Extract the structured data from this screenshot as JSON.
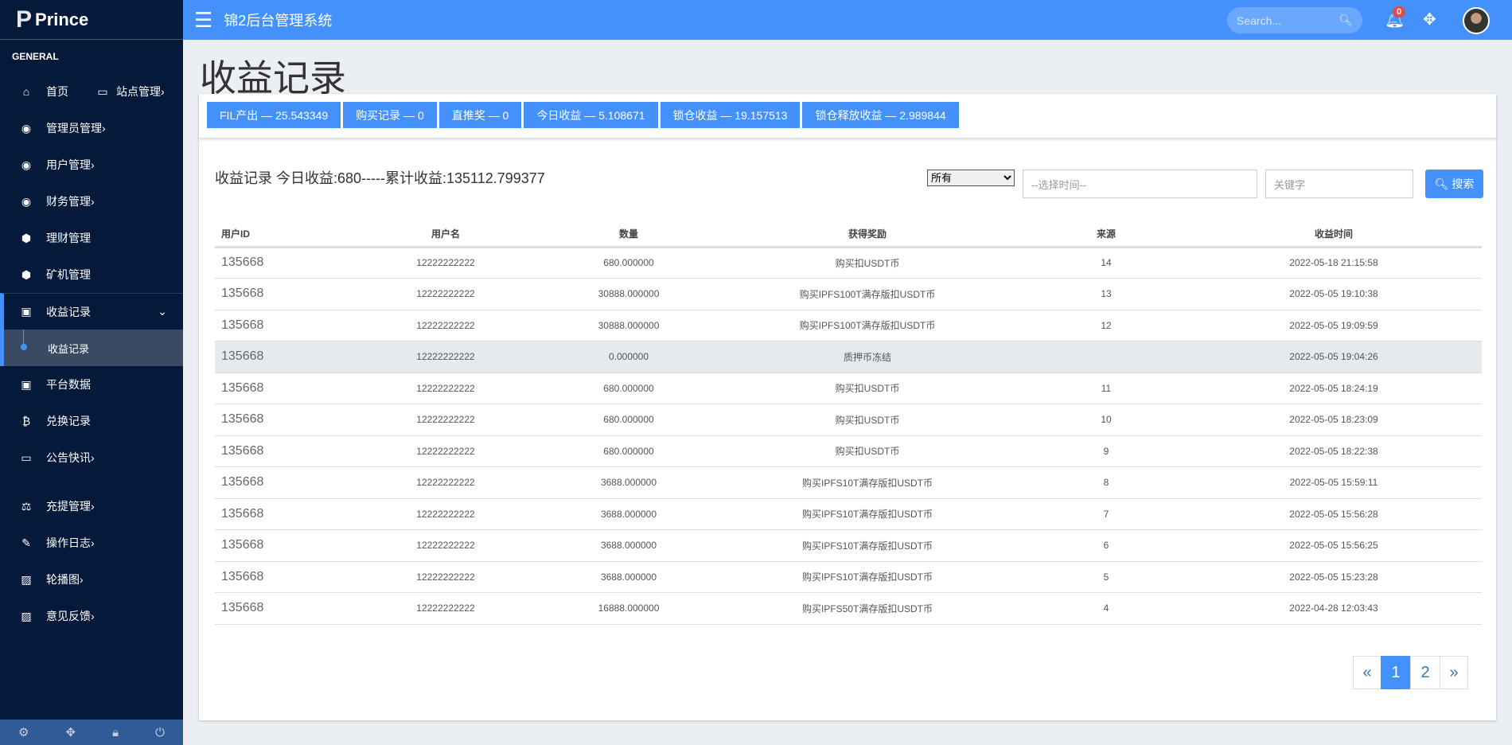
{
  "brand": "Prince",
  "sidebar": {
    "section": "GENERAL",
    "top_pair": [
      {
        "label": "首页",
        "icon": "home-icon"
      },
      {
        "label": "站点管理",
        "icon": "desktop-icon"
      }
    ],
    "items_a": [
      {
        "label": "管理员管理",
        "icon": "user-circle-icon"
      },
      {
        "label": "用户管理",
        "icon": "user-circle-icon"
      },
      {
        "label": "财务管理",
        "icon": "user-circle-icon"
      },
      {
        "label": "理财管理",
        "icon": "cube-icon"
      },
      {
        "label": "矿机管理",
        "icon": "cube-icon"
      }
    ],
    "active": {
      "label": "收益记录",
      "icon": "money-icon"
    },
    "sub": {
      "label": "收益记录"
    },
    "items_b": [
      {
        "label": "平台数据",
        "icon": "money-icon"
      },
      {
        "label": "兑换记录",
        "icon": "bitcoin-icon"
      },
      {
        "label": "公告快讯",
        "icon": "window-icon"
      },
      {
        "label": "充提管理",
        "icon": "balance-scale-icon"
      },
      {
        "label": "操作日志",
        "icon": "edit-icon"
      },
      {
        "label": "轮播图",
        "icon": "image-icon"
      },
      {
        "label": "意见反馈",
        "icon": "image-icon"
      }
    ]
  },
  "header": {
    "title": "锦2后台管理系统",
    "search_placeholder": "Search...",
    "notifications": "0"
  },
  "page_title": "收益记录",
  "stats": [
    "FIL产出 — 25.543349",
    "购买记录 — 0",
    "直推奖 — 0",
    "今日收益 — 5.108671",
    "锁仓收益 — 19.157513",
    "锁仓释放收益 — 2.989844"
  ],
  "summary": "收益记录 今日收益:680-----累计收益:135112.799377",
  "filter": {
    "select": "所有",
    "date_placeholder": "--选择时间--",
    "keyword_placeholder": "关键字",
    "search_label": "搜索"
  },
  "table": {
    "headers": [
      "用户ID",
      "用户名",
      "数量",
      "获得奖励",
      "来源",
      "收益时间"
    ],
    "rows": [
      [
        "135668",
        "12222222222",
        "680.000000",
        "购买扣USDT币",
        "14",
        "2022-05-18 21:15:58"
      ],
      [
        "135668",
        "12222222222",
        "30888.000000",
        "购买IPFS100T满存版扣USDT币",
        "13",
        "2022-05-05 19:10:38"
      ],
      [
        "135668",
        "12222222222",
        "30888.000000",
        "购买IPFS100T满存版扣USDT币",
        "12",
        "2022-05-05 19:09:59"
      ],
      [
        "135668",
        "12222222222",
        "0.000000",
        "质押币冻结",
        "",
        "2022-05-05 19:04:26"
      ],
      [
        "135668",
        "12222222222",
        "680.000000",
        "购买扣USDT币",
        "11",
        "2022-05-05 18:24:19"
      ],
      [
        "135668",
        "12222222222",
        "680.000000",
        "购买扣USDT币",
        "10",
        "2022-05-05 18:23:09"
      ],
      [
        "135668",
        "12222222222",
        "680.000000",
        "购买扣USDT币",
        "9",
        "2022-05-05 18:22:38"
      ],
      [
        "135668",
        "12222222222",
        "3688.000000",
        "购买IPFS10T满存版扣USDT币",
        "8",
        "2022-05-05 15:59:11"
      ],
      [
        "135668",
        "12222222222",
        "3688.000000",
        "购买IPFS10T满存版扣USDT币",
        "7",
        "2022-05-05 15:56:28"
      ],
      [
        "135668",
        "12222222222",
        "3688.000000",
        "购买IPFS10T满存版扣USDT币",
        "6",
        "2022-05-05 15:56:25"
      ],
      [
        "135668",
        "12222222222",
        "3688.000000",
        "购买IPFS10T满存版扣USDT币",
        "5",
        "2022-05-05 15:23:28"
      ],
      [
        "135668",
        "12222222222",
        "16888.000000",
        "购买IPFS50T满存版扣USDT币",
        "4",
        "2022-04-28 12:03:43"
      ]
    ]
  },
  "pagination": {
    "prev": "«",
    "pages": [
      "1",
      "2"
    ],
    "current": "1",
    "next": "»"
  },
  "colors": {
    "accent": "#4591fc",
    "sidebar": "#051a3a"
  }
}
